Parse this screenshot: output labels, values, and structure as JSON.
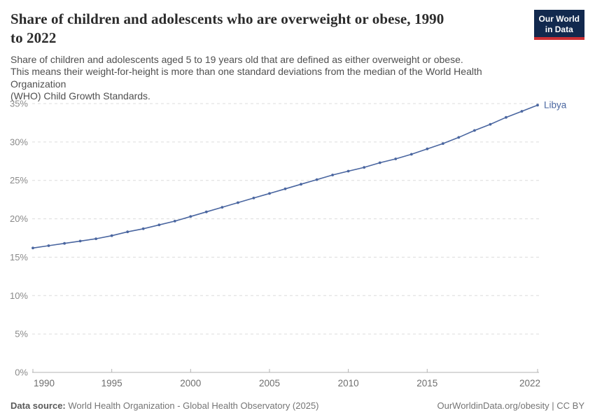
{
  "header": {
    "title": "Share of children and adolescents who are overweight or obese, 1990\nto 2022",
    "subtitle": "Share of children and adolescents aged 5 to 19 years old that are defined as either overweight or obese.\nThis means their weight-for-height is more than one standard deviations from the median of the World Health Organization\n(WHO) Child Growth Standards."
  },
  "logo": {
    "text": "Our World\nin Data",
    "background_color": "#12294e",
    "underline_color": "#cc2f34"
  },
  "chart_data": {
    "type": "line",
    "title": "Share of children and adolescents who are overweight or obese, 1990 to 2022",
    "xlabel": "",
    "ylabel": "",
    "x_range": [
      1990,
      2022
    ],
    "ylim": [
      0,
      35
    ],
    "yticks": [
      0,
      5,
      10,
      15,
      20,
      25,
      30,
      35
    ],
    "ytick_suffix": "%",
    "xticks": [
      1990,
      1995,
      2000,
      2005,
      2010,
      2015,
      2022
    ],
    "grid": "horizontal-dashed",
    "legend_position": "end-of-line-label",
    "series": [
      {
        "name": "Libya",
        "x": [
          1990,
          1991,
          1992,
          1993,
          1994,
          1995,
          1996,
          1997,
          1998,
          1999,
          2000,
          2001,
          2002,
          2003,
          2004,
          2005,
          2006,
          2007,
          2008,
          2009,
          2010,
          2011,
          2012,
          2013,
          2014,
          2015,
          2016,
          2017,
          2018,
          2019,
          2020,
          2021,
          2022
        ],
        "values": [
          16.2,
          16.5,
          16.8,
          17.1,
          17.4,
          17.8,
          18.3,
          18.7,
          19.2,
          19.7,
          20.3,
          20.9,
          21.5,
          22.1,
          22.7,
          23.3,
          23.9,
          24.5,
          25.1,
          25.7,
          26.2,
          26.7,
          27.3,
          27.8,
          28.4,
          29.1,
          29.8,
          30.6,
          31.5,
          32.3,
          33.2,
          34.0,
          34.8
        ]
      }
    ]
  },
  "colors": {
    "line": "#4A66A0",
    "grid": "#dcdcdc",
    "axis_line": "#b3b3b3",
    "ytick_text": "#8a8a8a",
    "xtick_text": "#6e6e6e"
  },
  "footer": {
    "datasource_label": "Data source:",
    "datasource_text": " World Health Organization - Global Health Observatory (2025)",
    "attribution": "OurWorldinData.org/obesity | CC BY"
  }
}
